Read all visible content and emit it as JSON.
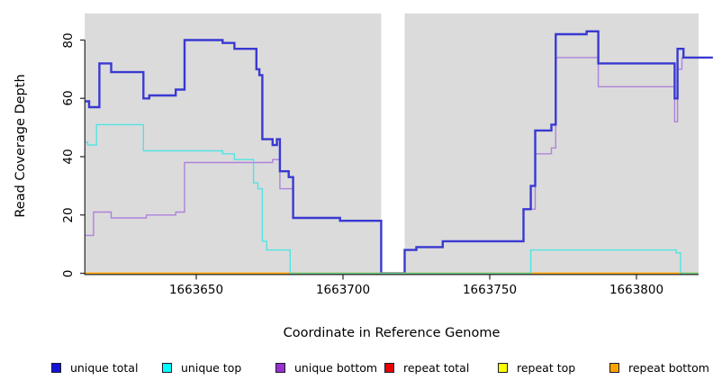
{
  "chart_data": {
    "type": "line",
    "subtype": "step",
    "title": "",
    "xlabel": "Coordinate in Reference Genome",
    "ylabel": "Read Coverage Depth",
    "xlim": [
      1663612,
      1663821
    ],
    "ylim": [
      0,
      89
    ],
    "x_ticks": [
      1663650,
      1663700,
      1663750,
      1663800
    ],
    "y_ticks": [
      0,
      20,
      40,
      60,
      80
    ],
    "grid": false,
    "panel_background": "#DBDBDB",
    "axis_color": "#333333",
    "no_data_gap": {
      "x_start": 1663713,
      "x_end": 1663721
    },
    "legend_position": "bottom",
    "series": [
      {
        "name": "unique total",
        "legend_color": "#1414D6",
        "line_color": "#3939D2",
        "line_width": 2.4,
        "opacity": 1,
        "points": [
          [
            1663612,
            59
          ],
          [
            1663613.5,
            57
          ],
          [
            1663617,
            72
          ],
          [
            1663621,
            69
          ],
          [
            1663632,
            60
          ],
          [
            1663634,
            61
          ],
          [
            1663643,
            63
          ],
          [
            1663646,
            80
          ],
          [
            1663659,
            79
          ],
          [
            1663663,
            77
          ],
          [
            1663670.5,
            70
          ],
          [
            1663671.5,
            68
          ],
          [
            1663672.5,
            46
          ],
          [
            1663676,
            44
          ],
          [
            1663677.5,
            46
          ],
          [
            1663678.5,
            35
          ],
          [
            1663681.5,
            33
          ],
          [
            1663683,
            19
          ],
          [
            1663699,
            18
          ],
          [
            1663713,
            0
          ],
          [
            1663721,
            8
          ],
          [
            1663725,
            9
          ],
          [
            1663734,
            11
          ],
          [
            1663761.5,
            22
          ],
          [
            1663764,
            30
          ],
          [
            1663765.5,
            49
          ],
          [
            1663771,
            51
          ],
          [
            1663772.5,
            82
          ],
          [
            1663783,
            83
          ],
          [
            1663787,
            72
          ],
          [
            1663813,
            60
          ],
          [
            1663814,
            77
          ],
          [
            1663816,
            74
          ],
          [
            1663826,
            74
          ]
        ]
      },
      {
        "name": "unique top",
        "legend_color": "#00FFFF",
        "line_color": "#00E8E8",
        "line_width": 1.4,
        "opacity": 0.62,
        "points": [
          [
            1663612,
            45
          ],
          [
            1663613,
            44
          ],
          [
            1663616,
            51
          ],
          [
            1663632,
            42
          ],
          [
            1663659,
            41
          ],
          [
            1663663,
            39
          ],
          [
            1663669.5,
            31
          ],
          [
            1663671,
            29
          ],
          [
            1663672.5,
            11
          ],
          [
            1663674,
            8
          ],
          [
            1663682,
            0
          ],
          [
            1663764,
            8
          ],
          [
            1663813.5,
            7
          ],
          [
            1663815,
            0
          ],
          [
            1663821,
            0
          ]
        ]
      },
      {
        "name": "unique bottom",
        "legend_color": "#9A30D0",
        "line_color": "#AD7DDB",
        "line_width": 1.4,
        "opacity": 0.95,
        "points": [
          [
            1663612,
            13
          ],
          [
            1663615,
            21
          ],
          [
            1663621,
            19
          ],
          [
            1663633,
            20
          ],
          [
            1663643,
            21
          ],
          [
            1663646,
            38
          ],
          [
            1663676,
            39
          ],
          [
            1663678.5,
            29
          ],
          [
            1663683,
            19
          ],
          [
            1663699,
            18
          ],
          [
            1663713,
            0
          ],
          [
            1663721,
            8
          ],
          [
            1663725,
            9
          ],
          [
            1663734,
            11
          ],
          [
            1663761.5,
            22
          ],
          [
            1663765.5,
            41
          ],
          [
            1663771,
            43
          ],
          [
            1663772.5,
            74
          ],
          [
            1663787,
            64
          ],
          [
            1663813,
            52
          ],
          [
            1663814,
            70
          ],
          [
            1663815.5,
            74
          ],
          [
            1663826,
            74
          ]
        ]
      },
      {
        "name": "repeat total",
        "legend_color": "#E80000",
        "line_color": "#E80000",
        "line_width": 1.4,
        "opacity": 1,
        "points": [
          [
            1663612,
            0
          ],
          [
            1663821,
            0
          ]
        ]
      },
      {
        "name": "repeat top",
        "legend_color": "#FFFF00",
        "line_color": "#FFFF00",
        "line_width": 1.4,
        "opacity": 1,
        "points": [
          [
            1663612,
            0
          ],
          [
            1663821,
            0
          ]
        ]
      },
      {
        "name": "repeat bottom",
        "legend_color": "#FFA500",
        "line_color": "#FFA500",
        "line_width": 1.4,
        "opacity": 1,
        "points": [
          [
            1663612,
            0
          ],
          [
            1663821,
            0
          ]
        ]
      }
    ]
  }
}
